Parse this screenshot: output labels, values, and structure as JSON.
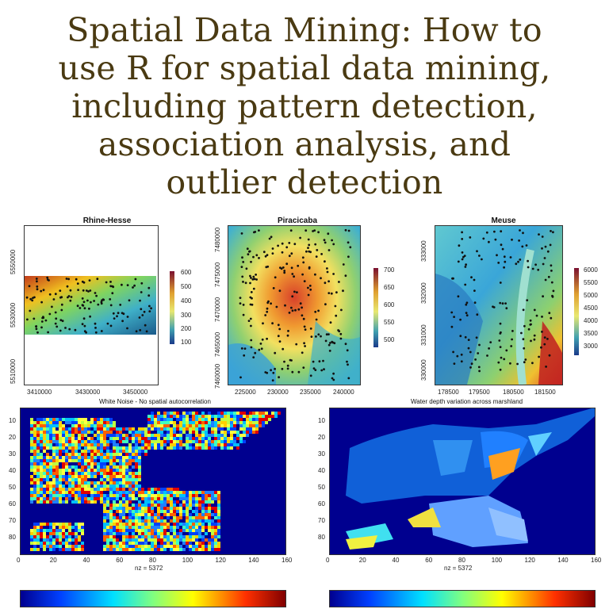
{
  "title_lines": [
    "Spatial Data Mining: How to",
    "use R for spatial data mining,",
    "including pattern detection,",
    "association analysis, and",
    "outlier detection"
  ],
  "maps": [
    {
      "name": "rhine-hesse",
      "title": "Rhine-Hesse",
      "xticks": [
        "3410000",
        "3430000",
        "3450000"
      ],
      "yticks": [
        "5550000",
        "5530000",
        "5510000"
      ],
      "legend": [
        "600",
        "500",
        "400",
        "300",
        "200",
        "100"
      ]
    },
    {
      "name": "piracicaba",
      "title": "Piracicaba",
      "xticks": [
        "225000",
        "230000",
        "235000",
        "240000"
      ],
      "yticks": [
        "7480000",
        "7475000",
        "7470000",
        "7465000",
        "7460000"
      ],
      "legend": [
        "700",
        "650",
        "600",
        "550",
        "500"
      ]
    },
    {
      "name": "meuse",
      "title": "Meuse",
      "xticks": [
        "178500",
        "179500",
        "180500",
        "181500"
      ],
      "yticks": [
        "333000",
        "332000",
        "331000",
        "330000"
      ],
      "legend": [
        "6000",
        "5500",
        "5000",
        "4500",
        "4000",
        "3500",
        "3000"
      ]
    }
  ],
  "heatmaps": [
    {
      "name": "white-noise",
      "caption": "White Noise - No spatial autocorrelation",
      "nz": "nz = 5372",
      "yticks": [
        "10",
        "20",
        "30",
        "40",
        "50",
        "60",
        "70",
        "80"
      ],
      "xticks": [
        "0",
        "20",
        "40",
        "60",
        "80",
        "100",
        "120",
        "140",
        "160"
      ]
    },
    {
      "name": "water-depth",
      "caption": "Water depth variation across marshland",
      "nz": "nz = 5372",
      "yticks": [
        "10",
        "20",
        "30",
        "40",
        "50",
        "60",
        "70",
        "80"
      ],
      "xticks": [
        "0",
        "20",
        "40",
        "60",
        "80",
        "100",
        "120",
        "140",
        "160"
      ]
    }
  ],
  "colors": {
    "title": "#4a3a12",
    "navy": "#00008f"
  }
}
